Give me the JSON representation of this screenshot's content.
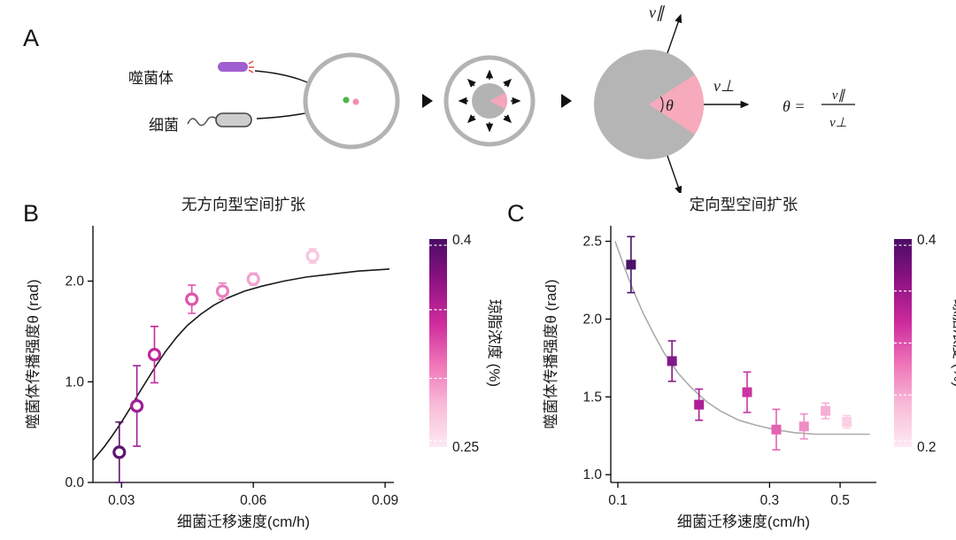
{
  "panels": {
    "a": {
      "label": "A",
      "phage_label": "噬菌体",
      "bacteria_label": "细菌",
      "v_parallel": "v∥",
      "v_perp": "v⊥",
      "theta": "θ",
      "formula": {
        "lhs": "θ =",
        "numerator": "v∥",
        "denominator": "v⊥"
      }
    },
    "b": {
      "label": "B"
    },
    "c": {
      "label": "C"
    }
  },
  "colors": {
    "plate_ring": "#b3b3b3",
    "colony_gray": "#b5b5b5",
    "phage_pink": "#f5a6ba",
    "phage_purple": "#a05fd0",
    "bacteria_green": "#53b54b",
    "phage_dot_pink": "#f190b2"
  },
  "chart_data": [
    {
      "type": "scatter",
      "title": "无方向型空间扩张",
      "xlabel": "细菌迁移速度(cm/h)",
      "ylabel": "噬菌体传播强度θ (rad)",
      "xscale": "linear",
      "xlim": [
        0.0235,
        0.092
      ],
      "ylim": [
        0,
        2.55
      ],
      "xticks": [
        0.03,
        0.06,
        0.09
      ],
      "xticklabels": [
        "0.03",
        "0.06",
        "0.09"
      ],
      "yticks": [
        0,
        1,
        2
      ],
      "yticklabels": [
        "0.0",
        "1.0",
        "2.0"
      ],
      "marker": "circle-open",
      "curve_color": "#1a1a1a",
      "curve": [
        [
          0.0235,
          0.22
        ],
        [
          0.026,
          0.35
        ],
        [
          0.028,
          0.47
        ],
        [
          0.03,
          0.6
        ],
        [
          0.032,
          0.74
        ],
        [
          0.034,
          0.89
        ],
        [
          0.036,
          1.03
        ],
        [
          0.038,
          1.17
        ],
        [
          0.04,
          1.3
        ],
        [
          0.0425,
          1.44
        ],
        [
          0.045,
          1.56
        ],
        [
          0.048,
          1.67
        ],
        [
          0.051,
          1.76
        ],
        [
          0.054,
          1.83
        ],
        [
          0.058,
          1.9
        ],
        [
          0.062,
          1.95
        ],
        [
          0.067,
          2.0
        ],
        [
          0.072,
          2.04
        ],
        [
          0.078,
          2.07
        ],
        [
          0.084,
          2.1
        ],
        [
          0.091,
          2.12
        ]
      ],
      "points": [
        {
          "x": 0.0295,
          "y": 0.3,
          "err": 0.3,
          "color": "#5c1670"
        },
        {
          "x": 0.0335,
          "y": 0.76,
          "err": 0.4,
          "color": "#9e1f93"
        },
        {
          "x": 0.0375,
          "y": 1.27,
          "err": 0.28,
          "color": "#c0289c"
        },
        {
          "x": 0.046,
          "y": 1.82,
          "err": 0.14,
          "color": "#dd55ab"
        },
        {
          "x": 0.053,
          "y": 1.9,
          "err": 0.08,
          "color": "#e97fc0"
        },
        {
          "x": 0.06,
          "y": 2.02,
          "err": 0.06,
          "color": "#f2a3cf"
        },
        {
          "x": 0.0735,
          "y": 2.25,
          "err": 0.07,
          "color": "#f8c6de"
        }
      ],
      "colorbar": {
        "label": "琼脂浓度 (%)",
        "top_label": "0.4",
        "bottom_label": "0.25",
        "gradient": [
          "#fde9f2",
          "#f9bcd8",
          "#ef74b8",
          "#cd2a9d",
          "#8e1283",
          "#4a0c66"
        ],
        "dash_fracs": [
          0.03,
          0.33,
          0.66,
          0.97
        ]
      }
    },
    {
      "type": "scatter",
      "title": "定向型空间扩张",
      "xlabel": "细菌迁移速度(cm/h)",
      "ylabel": "噬菌体传播强度θ (rad)",
      "xscale": "log",
      "xlim": [
        0.095,
        0.65
      ],
      "ylim": [
        0.95,
        2.6
      ],
      "xticks": [
        0.1,
        0.3,
        0.5
      ],
      "xticklabels": [
        "0.1",
        "0.3",
        "0.5"
      ],
      "yticks": [
        1.0,
        1.5,
        2.0,
        2.5
      ],
      "yticklabels": [
        "1.0",
        "1.5",
        "2.0",
        "2.5"
      ],
      "marker": "square-filled",
      "curve_color": "#ababab",
      "curve": [
        [
          0.098,
          2.5
        ],
        [
          0.105,
          2.33
        ],
        [
          0.112,
          2.18
        ],
        [
          0.12,
          2.04
        ],
        [
          0.13,
          1.9
        ],
        [
          0.14,
          1.78
        ],
        [
          0.155,
          1.65
        ],
        [
          0.17,
          1.56
        ],
        [
          0.19,
          1.47
        ],
        [
          0.21,
          1.41
        ],
        [
          0.24,
          1.35
        ],
        [
          0.27,
          1.32
        ],
        [
          0.31,
          1.29
        ],
        [
          0.36,
          1.27
        ],
        [
          0.42,
          1.26
        ],
        [
          0.5,
          1.26
        ],
        [
          0.62,
          1.26
        ]
      ],
      "points": [
        {
          "x": 0.11,
          "y": 2.35,
          "err": 0.18,
          "color": "#4a1168"
        },
        {
          "x": 0.148,
          "y": 1.73,
          "err": 0.13,
          "color": "#801a86"
        },
        {
          "x": 0.18,
          "y": 1.45,
          "err": 0.1,
          "color": "#ad1f95"
        },
        {
          "x": 0.255,
          "y": 1.53,
          "err": 0.13,
          "color": "#cb35a0"
        },
        {
          "x": 0.315,
          "y": 1.29,
          "err": 0.13,
          "color": "#e263b1"
        },
        {
          "x": 0.385,
          "y": 1.31,
          "err": 0.08,
          "color": "#ee8ec5"
        },
        {
          "x": 0.45,
          "y": 1.41,
          "err": 0.05,
          "color": "#f5afd6"
        },
        {
          "x": 0.525,
          "y": 1.34,
          "err": 0.04,
          "color": "#fbd0e5"
        }
      ],
      "colorbar": {
        "label": "琼脂浓度 (%)",
        "top_label": "0.4",
        "bottom_label": "0.2",
        "gradient": [
          "#fde9f2",
          "#f9bcd8",
          "#ef74b8",
          "#cd2a9d",
          "#8e1283",
          "#4a0c66"
        ],
        "dash_fracs": [
          0.03,
          0.25,
          0.5,
          0.75,
          0.97
        ]
      }
    }
  ]
}
